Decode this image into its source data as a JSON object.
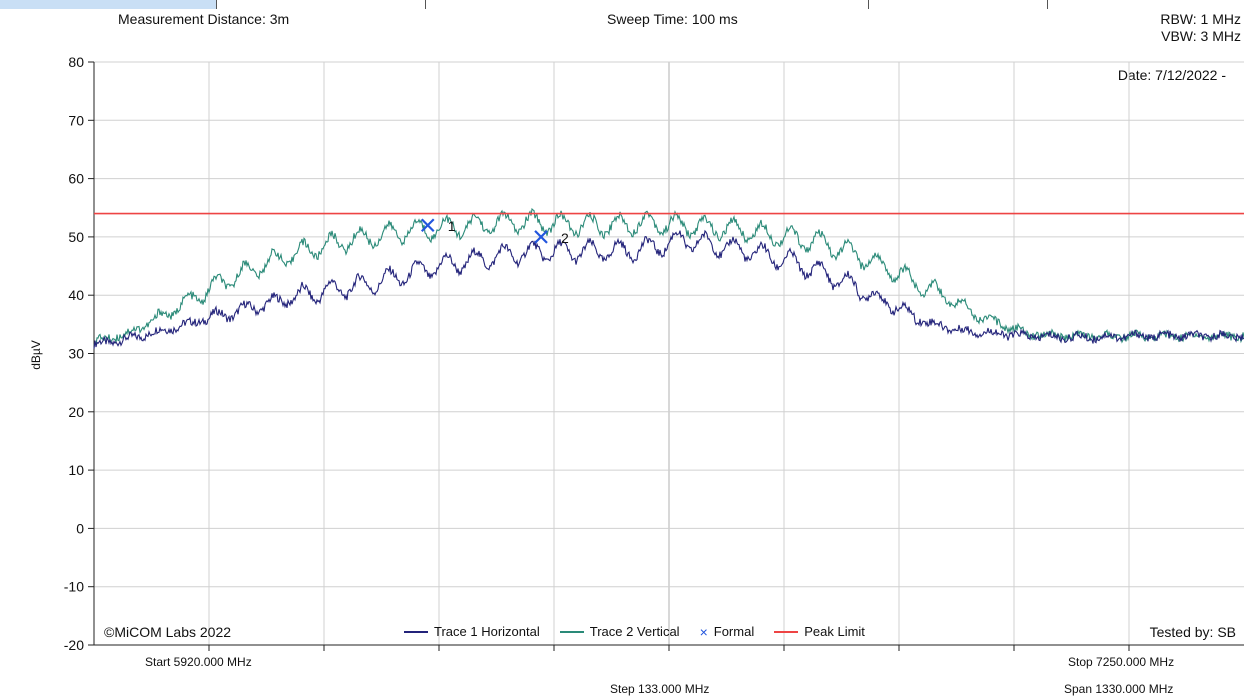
{
  "header": {
    "measurement_distance": "Measurement Distance: 3m",
    "sweep_time": "Sweep Time: 100 ms",
    "rbw": "RBW: 1 MHz",
    "vbw": "VBW: 3 MHz",
    "date": "Date: 7/12/2022 -"
  },
  "footer": {
    "copyright": "©MiCOM Labs 2022",
    "tested_by": "Tested by: SB",
    "start": "Start 5920.000 MHz",
    "stop": "Stop 7250.000 MHz",
    "step": "Step 133.000 MHz",
    "span": "Span 1330.000 MHz"
  },
  "legend": {
    "trace1": "Trace 1 Horizontal",
    "trace2": "Trace 2 Vertical",
    "formal": "Formal",
    "peak_limit": "Peak Limit"
  },
  "colors": {
    "trace1": "#23237a",
    "trace2": "#2a8a78",
    "peak_limit": "#ee4444",
    "marker": "#2255dd",
    "grid": "#d0d0d0",
    "topbar": "#c9dff5"
  },
  "chart_data": {
    "type": "line",
    "xlabel": "",
    "ylabel": "dBµV",
    "xlim": [
      5920,
      7250
    ],
    "ylim": [
      -20,
      80
    ],
    "yticks": [
      80,
      70,
      60,
      50,
      40,
      30,
      20,
      10,
      0,
      -10,
      -20
    ],
    "grid": true,
    "legend_position": "bottom-center",
    "peak_limit": 54,
    "series": [
      {
        "name": "Trace 1 Horizontal",
        "x": [
          5920,
          5960,
          6000,
          6040,
          6080,
          6120,
          6160,
          6200,
          6240,
          6280,
          6320,
          6360,
          6400,
          6440,
          6480,
          6520,
          6560,
          6600,
          6640,
          6680,
          6720,
          6760,
          6800,
          6840,
          6880,
          6920,
          6960,
          7000,
          7040,
          7080,
          7120,
          7160,
          7200,
          7250
        ],
        "y": [
          31.5,
          32.5,
          34,
          35.5,
          37,
          38.5,
          40,
          41,
          42,
          43.5,
          45,
          46,
          47,
          47.5,
          47.5,
          47.5,
          48,
          49.5,
          48.5,
          47.5,
          46,
          44,
          41.5,
          38.5,
          35.5,
          34,
          33.5,
          33,
          32.8,
          32.8,
          33,
          33,
          33,
          33
        ]
      },
      {
        "name": "Trace 2 Vertical",
        "x": [
          5920,
          5960,
          6000,
          6040,
          6080,
          6120,
          6160,
          6200,
          6240,
          6280,
          6320,
          6360,
          6400,
          6440,
          6480,
          6520,
          6560,
          6600,
          6640,
          6680,
          6720,
          6760,
          6800,
          6840,
          6880,
          6920,
          6960,
          7000,
          7040,
          7080,
          7120,
          7160,
          7200,
          7250
        ],
        "y": [
          32,
          33.5,
          36.5,
          40,
          43,
          45.5,
          47.5,
          49,
          50,
          51,
          51.5,
          52,
          52.5,
          52.5,
          52,
          52,
          52.5,
          52,
          51.5,
          51,
          50,
          49,
          47,
          44.5,
          41.5,
          38.5,
          35.5,
          33.5,
          33,
          33,
          33,
          33,
          33,
          33
        ]
      }
    ],
    "markers": [
      {
        "label": "1",
        "x": 6306,
        "y": 52,
        "series": "Trace 2 Vertical"
      },
      {
        "label": "2",
        "x": 6437,
        "y": 50,
        "series": "Trace 1 Horizontal"
      }
    ]
  }
}
